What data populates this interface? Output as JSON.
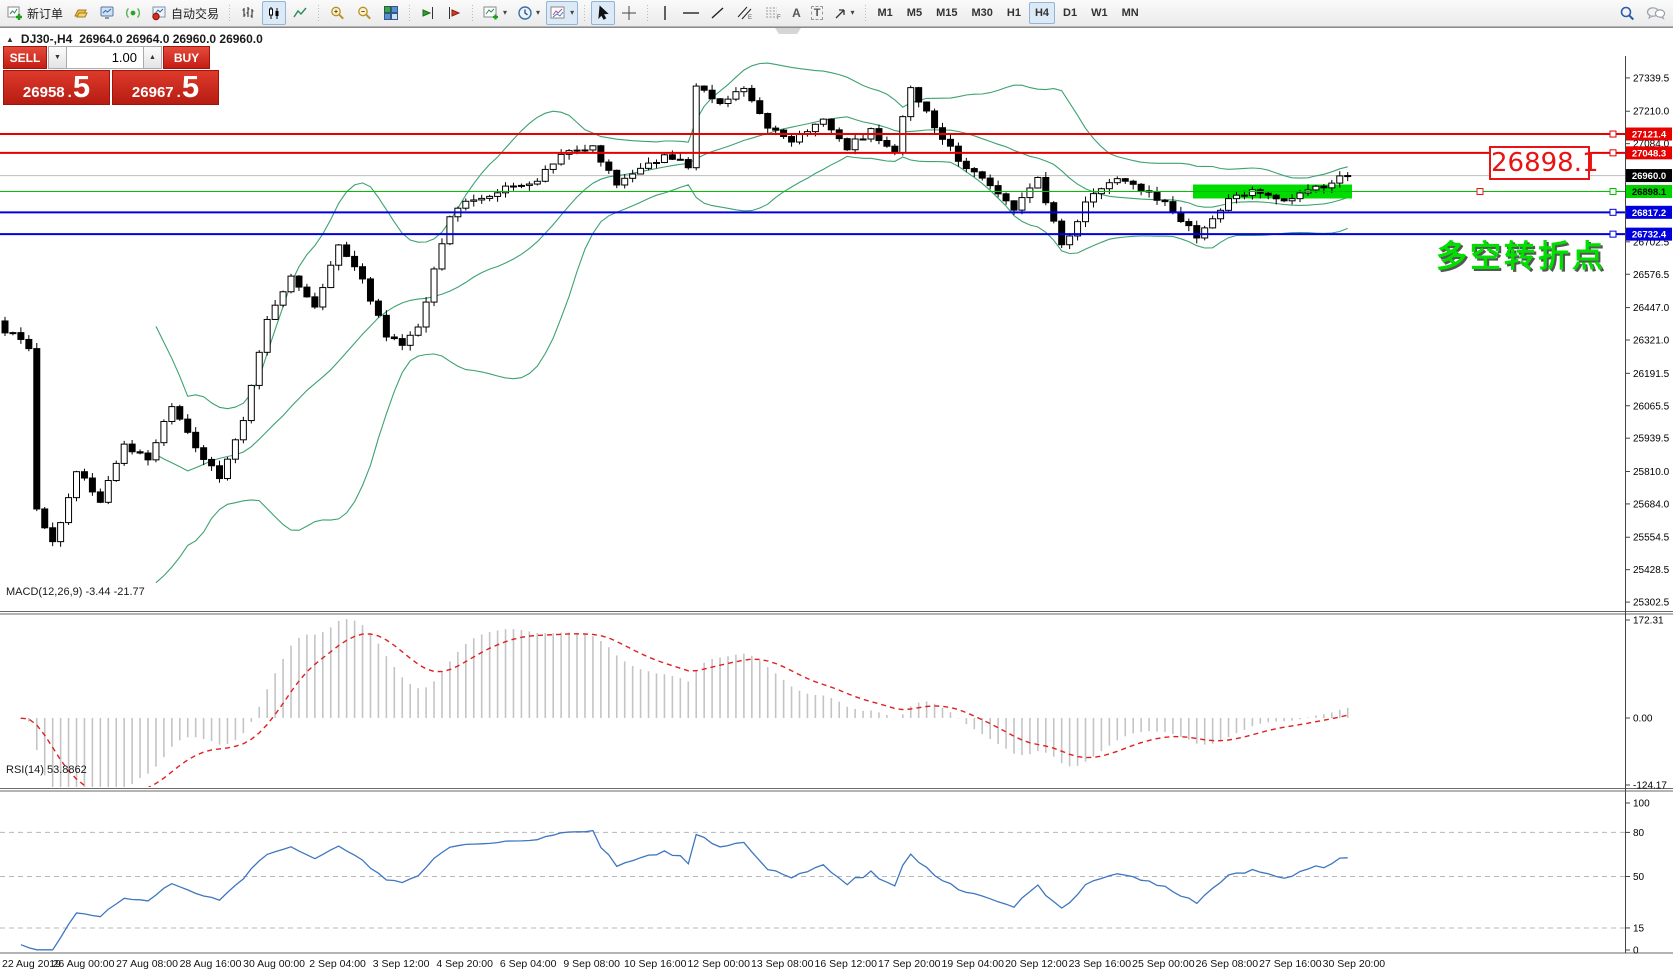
{
  "toolbar": {
    "new_order_label": "新订单",
    "auto_trading_label": "自动交易",
    "timeframes": [
      "M1",
      "M5",
      "M15",
      "M30",
      "H1",
      "H4",
      "D1",
      "W1",
      "MN"
    ],
    "active_timeframe": "H4",
    "text_tool_glyph": "A",
    "label_tool_glyph": "T",
    "icon_names": [
      "new-order-icon",
      "market-depth-icon",
      "terminal-icon",
      "signals-icon",
      "auto-trading-icon",
      "bar-chart-icon",
      "candlestick-chart-icon",
      "line-chart-icon",
      "zoom-in-icon",
      "zoom-out-icon",
      "tile-windows-icon",
      "auto-scroll-icon",
      "chart-shift-icon",
      "indicators-icon",
      "periods-icon",
      "templates-icon",
      "cursor-icon",
      "crosshair-icon",
      "vertical-line-icon",
      "horizontal-line-icon",
      "trendline-icon",
      "channel-icon",
      "fibonacci-icon",
      "text-icon",
      "text-label-icon",
      "arrows-icon",
      "search-icon",
      "community-icon"
    ]
  },
  "symbol_header": {
    "symbol": "DJ30-,H4",
    "quotes": "26964.0 26964.0 26960.0 26960.0"
  },
  "trade_panel": {
    "sell_label": "SELL",
    "buy_label": "BUY",
    "volume": "1.00",
    "sell_price_small": "26958",
    "sell_price_big": "5",
    "buy_price_small": "26967",
    "buy_price_big": "5",
    "decimal": "."
  },
  "annotations": {
    "price_callout": "26898.1",
    "turning_point_text": "多空转折点"
  },
  "chart_data": {
    "type": "candlestick",
    "symbol": "DJ30-",
    "timeframe": "H4",
    "open_high_low_close": [
      26964.0,
      26964.0,
      26960.0,
      26960.0
    ],
    "candle_count": 170,
    "main_pane": {
      "price_at_top": 27378,
      "price_at_bottom": 25268,
      "y_ticks": [
        27339.5,
        27210.0,
        27084.0,
        26702.5,
        26576.5,
        26447.0,
        26321.0,
        26191.5,
        26065.5,
        25939.5,
        25810.0,
        25684.0,
        25554.5,
        25428.5,
        25302.5
      ],
      "horizontal_lines": [
        {
          "value": 27121.4,
          "color": "#e60000",
          "width": 2,
          "tag_color": "#e60000",
          "text_color": "#ffffff",
          "current": false
        },
        {
          "value": 27048.3,
          "color": "#e60000",
          "width": 2,
          "tag_color": "#e60000",
          "text_color": "#ffffff",
          "current": false
        },
        {
          "value": 26960.0,
          "color": "#bdbdbd",
          "width": 1,
          "tag_color": "#000000",
          "text_color": "#ffffff",
          "current": true
        },
        {
          "value": 26898.1,
          "color": "#00c000",
          "width": 1,
          "tag_color": "#00d200",
          "text_color": "#000000",
          "current": false
        },
        {
          "value": 26817.2,
          "color": "#0000e0",
          "width": 2,
          "tag_color": "#0000dd",
          "text_color": "#ffffff",
          "current": false
        },
        {
          "value": 26732.4,
          "color": "#0000e0",
          "width": 2,
          "tag_color": "#0000dd",
          "text_color": "#ffffff",
          "current": false
        }
      ],
      "highlight_box": {
        "value": 26898.1,
        "color": "#00dc00",
        "x_from": 1193,
        "x_to": 1352
      },
      "bollinger": {
        "period": 20,
        "deviation": 2,
        "color": "#3da26f"
      },
      "candle_up_color": "#ffffff",
      "candle_down_color": "#000000",
      "candle_border_color": "#000000",
      "close_waypoints": [
        [
          0,
          26360
        ],
        [
          2,
          26320
        ],
        [
          3,
          26290
        ],
        [
          4,
          25660
        ],
        [
          6,
          25530
        ],
        [
          9,
          25810
        ],
        [
          12,
          25700
        ],
        [
          15,
          25910
        ],
        [
          18,
          25860
        ],
        [
          21,
          26060
        ],
        [
          24,
          25900
        ],
        [
          27,
          25790
        ],
        [
          30,
          26000
        ],
        [
          33,
          26400
        ],
        [
          36,
          26560
        ],
        [
          39,
          26460
        ],
        [
          42,
          26680
        ],
        [
          45,
          26550
        ],
        [
          48,
          26340
        ],
        [
          50,
          26300
        ],
        [
          52,
          26360
        ],
        [
          54,
          26600
        ],
        [
          56,
          26800
        ],
        [
          58,
          26850
        ],
        [
          61,
          26880
        ],
        [
          64,
          26920
        ],
        [
          67,
          26940
        ],
        [
          70,
          27050
        ],
        [
          74,
          27070
        ],
        [
          77,
          26930
        ],
        [
          80,
          26980
        ],
        [
          83,
          27040
        ],
        [
          86,
          27000
        ],
        [
          87,
          27320
        ],
        [
          90,
          27230
        ],
        [
          93,
          27300
        ],
        [
          96,
          27150
        ],
        [
          99,
          27100
        ],
        [
          103,
          27180
        ],
        [
          106,
          27070
        ],
        [
          109,
          27130
        ],
        [
          112,
          27060
        ],
        [
          114,
          27300
        ],
        [
          117,
          27150
        ],
        [
          120,
          27020
        ],
        [
          123,
          26960
        ],
        [
          127,
          26820
        ],
        [
          130,
          26960
        ],
        [
          133,
          26680
        ],
        [
          137,
          26900
        ],
        [
          140,
          26960
        ],
        [
          143,
          26910
        ],
        [
          146,
          26850
        ],
        [
          150,
          26730
        ],
        [
          154,
          26860
        ],
        [
          157,
          26900
        ],
        [
          161,
          26870
        ],
        [
          165,
          26910
        ],
        [
          169,
          26960
        ]
      ]
    },
    "macd_pane": {
      "label": "MACD(12,26,9) -3.44 -21.77",
      "params": [
        12,
        26,
        9
      ],
      "main_value": -3.44,
      "signal_value": -21.77,
      "y_ticks": [
        172.31,
        0.0,
        -124.17
      ],
      "bar_color": "#c4c4c4",
      "signal_color": "#e02020"
    },
    "rsi_pane": {
      "label": "RSI(14) 53.8862",
      "period": 14,
      "value": 53.8862,
      "levels": [
        80,
        50,
        15
      ],
      "y_ticks": [
        100,
        80,
        50,
        15,
        0
      ],
      "line_color": "#3f76c0",
      "level_color": "#b8b8b8"
    },
    "time_labels": [
      "22 Aug 2019",
      "26 Aug 00:00",
      "27 Aug 08:00",
      "28 Aug 16:00",
      "30 Aug 00:00",
      "2 Sep 04:00",
      "3 Sep 12:00",
      "4 Sep 20:00",
      "6 Sep 04:00",
      "9 Sep 08:00",
      "10 Sep 16:00",
      "12 Sep 00:00",
      "13 Sep 08:00",
      "16 Sep 12:00",
      "17 Sep 20:00",
      "19 Sep 04:00",
      "20 Sep 12:00",
      "23 Sep 16:00",
      "25 Sep 00:00",
      "26 Sep 08:00",
      "27 Sep 16:00",
      "30 Sep 20:00"
    ]
  }
}
